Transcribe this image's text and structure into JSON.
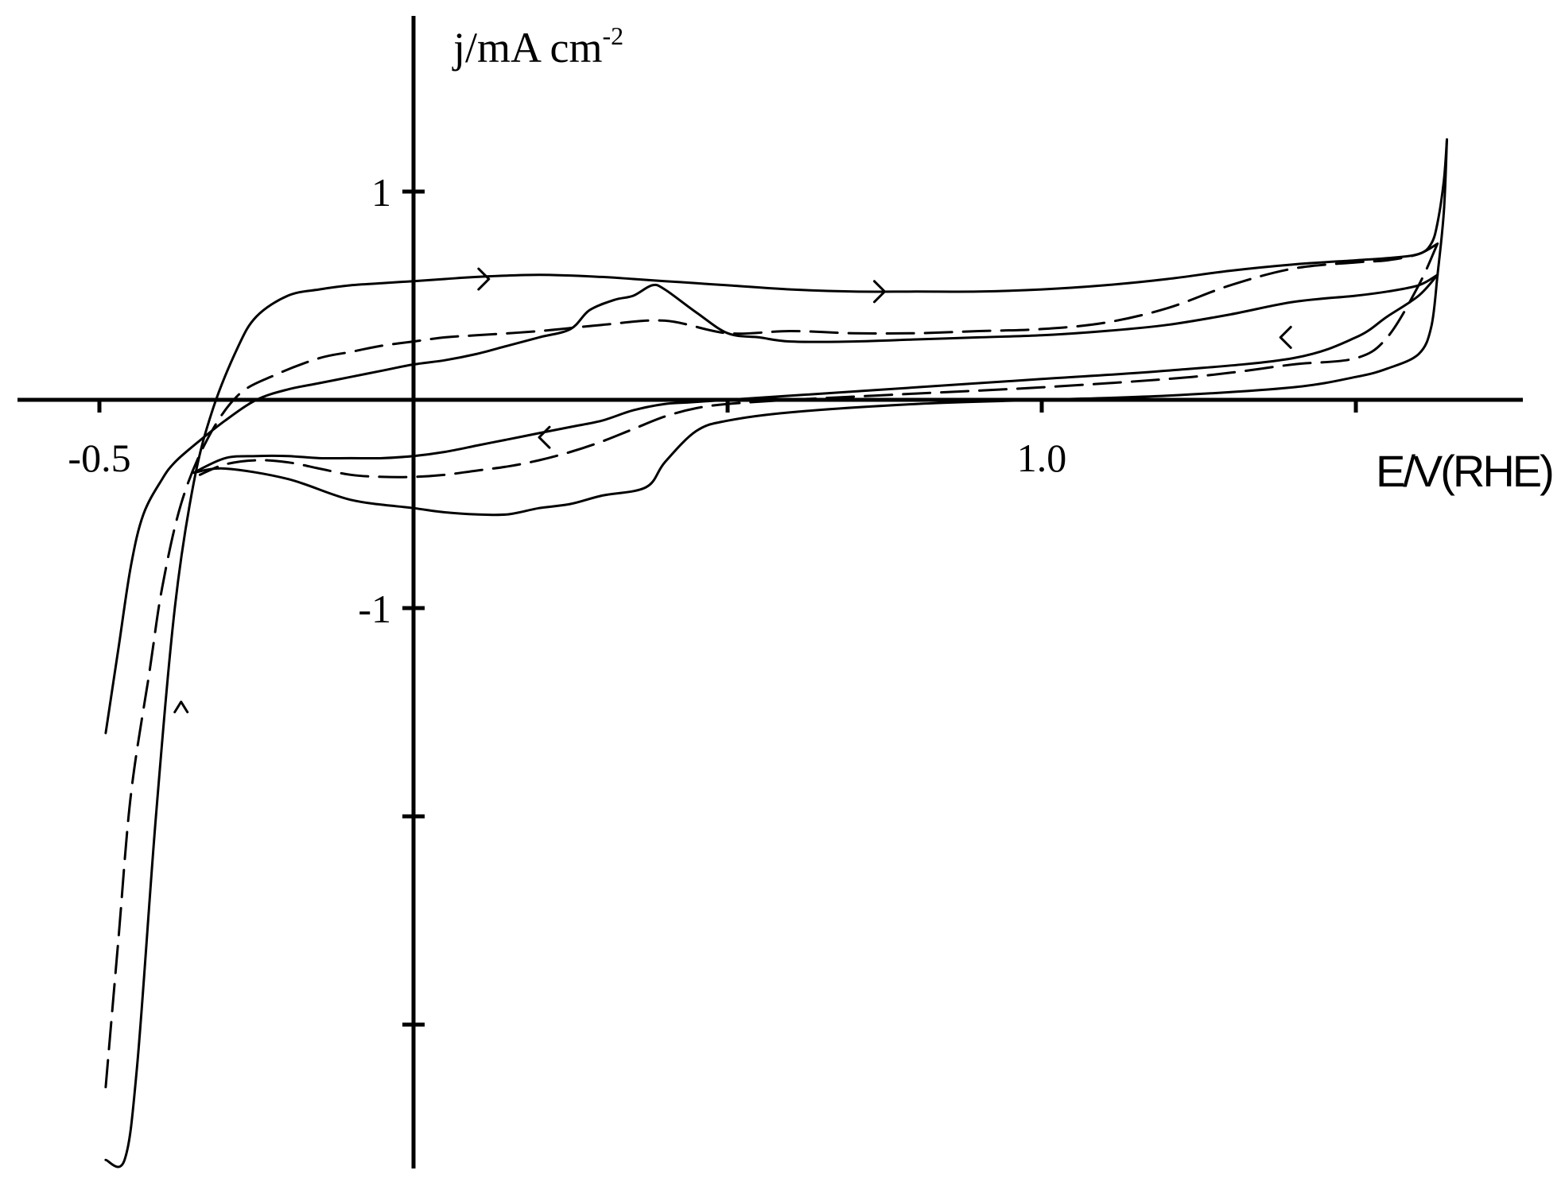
{
  "chart_data": {
    "type": "line",
    "title": "",
    "xlabel": "E/V(RHE)",
    "ylabel": "j/mA cm",
    "ylabel_superscript": "-2",
    "xlim": [
      -0.5,
      1.75
    ],
    "ylim": [
      -3.65,
      1.9
    ],
    "x_ticks": [
      -0.5,
      0.0,
      0.5,
      1.0,
      1.5
    ],
    "x_tick_labels": [
      {
        "value": -0.5,
        "text": "-0.5"
      },
      {
        "value": 1.0,
        "text": "1.0"
      }
    ],
    "y_ticks": [
      -3.0,
      -2.0,
      -1.0,
      1.0
    ],
    "y_tick_labels": [
      {
        "value": 1.0,
        "text": "1"
      },
      {
        "value": -1.0,
        "text": "-1"
      }
    ],
    "grid": false,
    "series": [
      {
        "style": "solid",
        "x": [
          -0.49,
          -0.46,
          -0.44,
          -0.41,
          -0.38,
          -0.35,
          -0.32,
          -0.28,
          -0.25,
          -0.2,
          -0.15,
          -0.1,
          -0.05,
          0.0,
          0.05,
          0.1,
          0.2,
          0.3,
          0.35,
          0.4,
          0.45,
          0.5,
          0.6,
          0.7,
          0.8,
          0.9,
          1.0,
          1.1,
          1.2,
          1.3,
          1.4,
          1.5,
          1.55,
          1.6,
          1.62,
          1.63,
          1.64,
          1.645
        ],
        "y": [
          -3.65,
          -3.65,
          -3.2,
          -2.0,
          -1.0,
          -0.4,
          -0.05,
          0.25,
          0.4,
          0.5,
          0.53,
          0.55,
          0.56,
          0.57,
          0.58,
          0.59,
          0.6,
          0.59,
          0.58,
          0.57,
          0.56,
          0.55,
          0.53,
          0.52,
          0.52,
          0.52,
          0.53,
          0.55,
          0.58,
          0.62,
          0.65,
          0.67,
          0.68,
          0.7,
          0.75,
          0.85,
          1.05,
          1.25
        ]
      },
      {
        "style": "solid",
        "x": [
          1.645,
          1.64,
          1.63,
          1.62,
          1.6,
          1.55,
          1.5,
          1.4,
          1.2,
          1.0,
          0.8,
          0.6,
          0.5,
          0.45,
          0.4,
          0.37,
          0.3,
          0.25,
          0.2,
          0.15,
          0.1,
          0.05,
          0.0,
          -0.1,
          -0.2,
          -0.3,
          -0.35
        ],
        "y": [
          1.25,
          0.9,
          0.6,
          0.35,
          0.22,
          0.15,
          0.11,
          0.06,
          0.02,
          0.0,
          -0.02,
          -0.06,
          -0.1,
          -0.15,
          -0.3,
          -0.42,
          -0.46,
          -0.5,
          -0.52,
          -0.55,
          -0.55,
          -0.54,
          -0.52,
          -0.48,
          -0.38,
          -0.33,
          -0.35
        ]
      },
      {
        "style": "solid",
        "x": [
          -0.49,
          -0.47,
          -0.45,
          -0.43,
          -0.4,
          -0.38,
          -0.35,
          -0.3,
          -0.25,
          -0.2,
          -0.15,
          -0.1,
          -0.05,
          0.0,
          0.05,
          0.1,
          0.15,
          0.2,
          0.25,
          0.28,
          0.32,
          0.35,
          0.38,
          0.4,
          0.45,
          0.5,
          0.55,
          0.6,
          0.7,
          0.8,
          0.9,
          1.0,
          1.1,
          1.2,
          1.3,
          1.4,
          1.5,
          1.55,
          1.6,
          1.63
        ],
        "y": [
          -1.6,
          -1.2,
          -0.8,
          -0.55,
          -0.38,
          -0.3,
          -0.22,
          -0.1,
          0.0,
          0.05,
          0.08,
          0.11,
          0.14,
          0.17,
          0.19,
          0.22,
          0.26,
          0.3,
          0.34,
          0.43,
          0.48,
          0.5,
          0.55,
          0.53,
          0.42,
          0.32,
          0.3,
          0.28,
          0.28,
          0.29,
          0.3,
          0.31,
          0.33,
          0.36,
          0.41,
          0.47,
          0.5,
          0.52,
          0.55,
          0.6
        ]
      },
      {
        "style": "solid",
        "x": [
          1.63,
          1.6,
          1.55,
          1.5,
          1.4,
          1.2,
          1.0,
          0.8,
          0.6,
          0.45,
          0.4,
          0.35,
          0.3,
          0.25,
          0.2,
          0.15,
          0.1,
          0.05,
          0.0,
          -0.05,
          -0.1,
          -0.15,
          -0.2,
          -0.25,
          -0.3,
          -0.35
        ],
        "y": [
          0.6,
          0.5,
          0.4,
          0.3,
          0.2,
          0.14,
          0.1,
          0.06,
          0.02,
          -0.01,
          -0.02,
          -0.05,
          -0.1,
          -0.13,
          -0.16,
          -0.19,
          -0.22,
          -0.25,
          -0.27,
          -0.28,
          -0.28,
          -0.28,
          -0.27,
          -0.27,
          -0.28,
          -0.35
        ]
      },
      {
        "style": "dashed",
        "x": [
          -0.49,
          -0.47,
          -0.45,
          -0.42,
          -0.4,
          -0.37,
          -0.33,
          -0.28,
          -0.22,
          -0.15,
          -0.1,
          -0.05,
          0.0,
          0.05,
          0.1,
          0.2,
          0.3,
          0.4,
          0.5,
          0.6,
          0.7,
          0.8,
          0.9,
          1.0,
          1.1,
          1.2,
          1.3,
          1.4,
          1.5,
          1.55,
          1.6,
          1.63
        ],
        "y": [
          -3.3,
          -2.6,
          -1.9,
          -1.3,
          -0.9,
          -0.5,
          -0.2,
          0.02,
          0.12,
          0.2,
          0.23,
          0.26,
          0.28,
          0.3,
          0.31,
          0.33,
          0.36,
          0.38,
          0.32,
          0.33,
          0.32,
          0.32,
          0.33,
          0.34,
          0.37,
          0.44,
          0.55,
          0.63,
          0.66,
          0.67,
          0.7,
          0.75
        ]
      },
      {
        "style": "dashed",
        "x": [
          1.63,
          1.6,
          1.55,
          1.5,
          1.4,
          1.3,
          1.2,
          1.0,
          0.8,
          0.6,
          0.5,
          0.45,
          0.4,
          0.35,
          0.3,
          0.25,
          0.2,
          0.15,
          0.1,
          0.05,
          0.0,
          -0.05,
          -0.1,
          -0.15,
          -0.2,
          -0.25,
          -0.3,
          -0.34
        ],
        "y": [
          0.75,
          0.55,
          0.3,
          0.2,
          0.17,
          0.13,
          0.1,
          0.06,
          0.03,
          0.0,
          -0.02,
          -0.04,
          -0.08,
          -0.14,
          -0.2,
          -0.25,
          -0.29,
          -0.32,
          -0.34,
          -0.36,
          -0.37,
          -0.37,
          -0.36,
          -0.33,
          -0.3,
          -0.29,
          -0.31,
          -0.36
        ]
      }
    ],
    "arrows": [
      {
        "x": 0.12,
        "y": 0.58,
        "direction": "right"
      },
      {
        "x": 0.75,
        "y": 0.52,
        "direction": "right"
      },
      {
        "x": 1.38,
        "y": 0.3,
        "direction": "left"
      },
      {
        "x": 0.2,
        "y": -0.18,
        "direction": "left"
      },
      {
        "x": -0.37,
        "y": -1.45,
        "direction": "up"
      }
    ]
  }
}
